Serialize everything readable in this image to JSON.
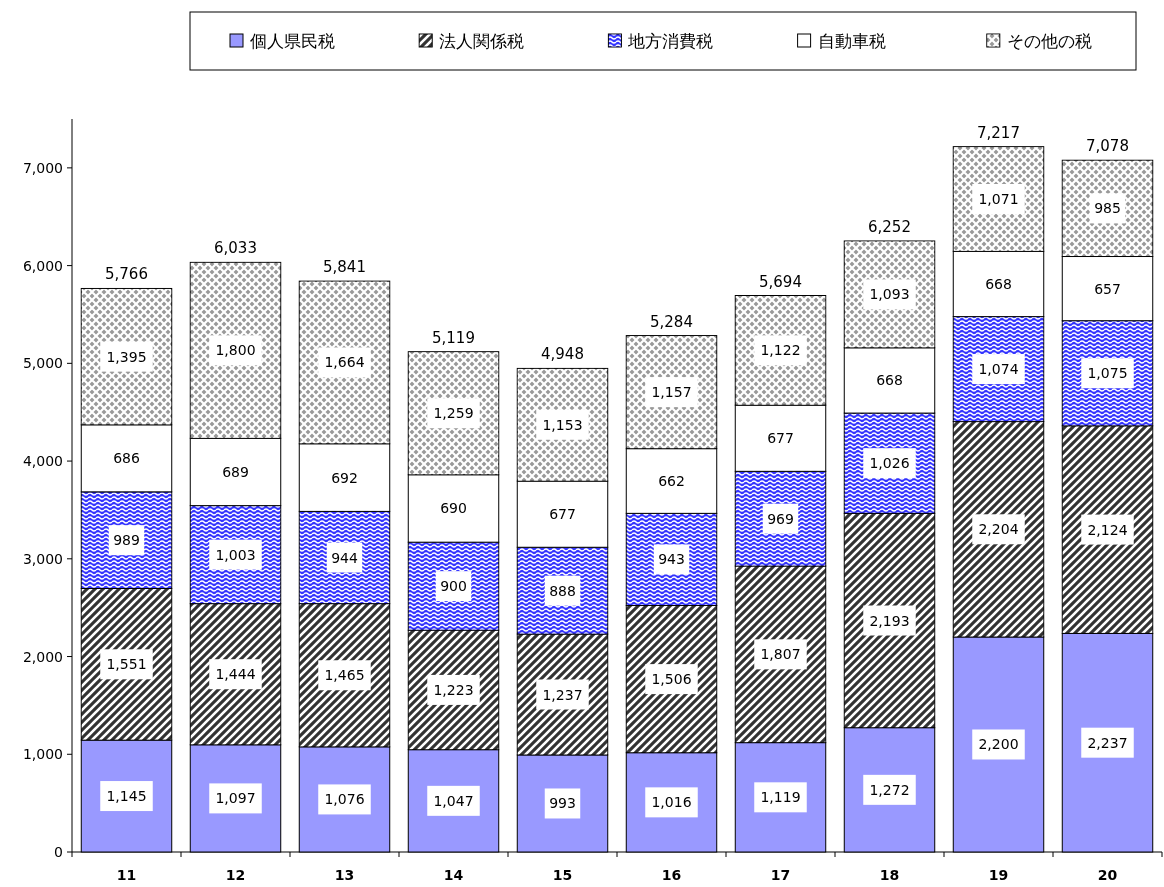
{
  "chart_data": {
    "type": "bar",
    "stacked": true,
    "legend": "top",
    "grid": false,
    "categories": [
      "11",
      "12",
      "13",
      "14",
      "15",
      "16",
      "17",
      "18",
      "19",
      "20"
    ],
    "ylim": [
      0,
      7500
    ],
    "yticks": [
      0,
      {
        "value": 1000,
        "label": "1,000"
      },
      {
        "value": 2000,
        "label": "2,000"
      },
      {
        "value": 3000,
        "label": "3,000"
      },
      {
        "value": 4000,
        "label": "4,000"
      },
      {
        "value": 5000,
        "label": "5,000"
      },
      {
        "value": 6000,
        "label": "6,000"
      },
      {
        "value": 7000,
        "label": "7,000"
      }
    ],
    "series": [
      {
        "name": "個人県民税",
        "color": "#9999ff",
        "values": [
          1145,
          1097,
          1076,
          1047,
          993,
          1016,
          1119,
          1272,
          2200,
          2237
        ],
        "value_labels": [
          "1,145",
          "1,097",
          "1,076",
          "1,047",
          "993",
          "1,016",
          "1,119",
          "1,272",
          "2,200",
          "2,237"
        ]
      },
      {
        "name": "法人関係税",
        "color": "#333333",
        "values": [
          1551,
          1444,
          1465,
          1223,
          1237,
          1506,
          1807,
          2193,
          2204,
          2124
        ],
        "value_labels": [
          "1,551",
          "1,444",
          "1,465",
          "1,223",
          "1,237",
          "1,506",
          "1,807",
          "2,193",
          "2,204",
          "2,124"
        ]
      },
      {
        "name": "地方消費税",
        "color": "#3333ff",
        "values": [
          989,
          1003,
          944,
          900,
          888,
          943,
          969,
          1026,
          1074,
          1075
        ],
        "value_labels": [
          "989",
          "1,003",
          "944",
          "900",
          "888",
          "943",
          "969",
          "1,026",
          "1,074",
          "1,075"
        ]
      },
      {
        "name": "自動車税",
        "color": "#ffffff",
        "values": [
          686,
          689,
          692,
          690,
          677,
          662,
          677,
          668,
          668,
          657
        ],
        "value_labels": [
          "686",
          "689",
          "692",
          "690",
          "677",
          "662",
          "677",
          "668",
          "668",
          "657"
        ]
      },
      {
        "name": "その他の税",
        "color": "#999999",
        "values": [
          1395,
          1800,
          1664,
          1259,
          1153,
          1157,
          1122,
          1093,
          1071,
          985
        ],
        "value_labels": [
          "1,395",
          "1,800",
          "1,664",
          "1,259",
          "1,153",
          "1,157",
          "1,122",
          "1,093",
          "1,071",
          "985"
        ]
      }
    ],
    "totals": [
      "5,766",
      "6,033",
      "5,841",
      "5,119",
      "4,948",
      "5,284",
      "5,694",
      "6,252",
      "7,217",
      "7,078"
    ]
  }
}
